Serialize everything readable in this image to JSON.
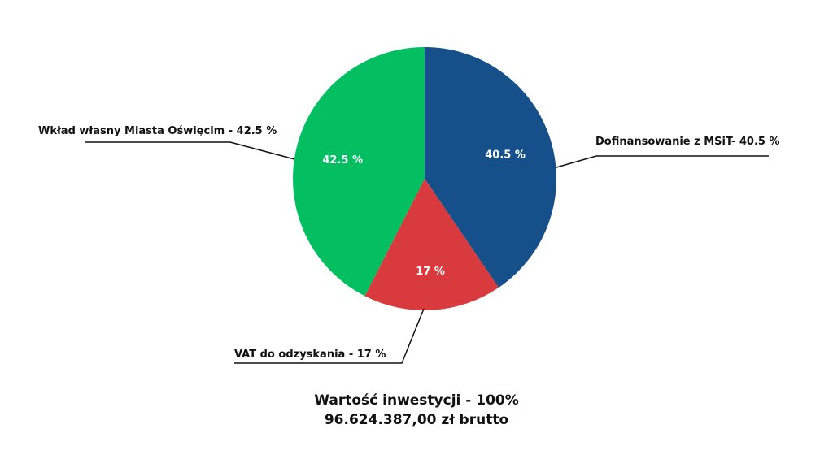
{
  "chart_data": {
    "type": "pie",
    "slices": [
      {
        "label": "Dofinansowanie z MSiT- 40.5 %",
        "inner_label": "40.5 %",
        "value": 40.5,
        "color": "#15508a"
      },
      {
        "label": "VAT do odzyskania - 17 %",
        "inner_label": "17 %",
        "value": 17,
        "color": "#d83a3e"
      },
      {
        "label": "Wkład własny Miasta Oświęcim - 42.5 %",
        "inner_label": "42.5 %",
        "value": 42.5,
        "color": "#03bf62"
      }
    ],
    "start": "12 o'clock",
    "direction": "clockwise",
    "legend": "none"
  },
  "caption": {
    "line1": "Wartość inwestycji - 100%",
    "line2": "96.624.387,00 zł brutto"
  }
}
